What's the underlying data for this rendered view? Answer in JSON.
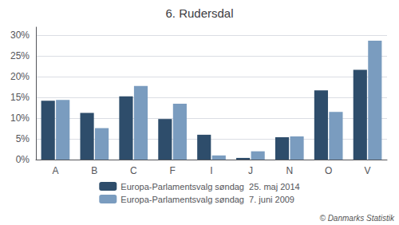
{
  "chart_data": {
    "type": "bar",
    "title": "6. Rudersdal",
    "categories": [
      "A",
      "B",
      "C",
      "F",
      "I",
      "J",
      "N",
      "O",
      "V"
    ],
    "series": [
      {
        "name": "Europa-Parlamentsvalg søndag  25. maj 2014",
        "color": "#2e4d6b",
        "values": [
          14.2,
          11.3,
          15.3,
          9.8,
          6.0,
          0.4,
          5.4,
          16.7,
          21.7
        ]
      },
      {
        "name": "Europa-Parlamentsvalg søndag  7. juni 2009",
        "color": "#7a9cbf",
        "values": [
          14.4,
          7.6,
          17.8,
          13.5,
          1.0,
          2.0,
          5.6,
          11.5,
          28.7
        ]
      }
    ],
    "ylim": [
      0,
      32
    ],
    "yticks": [
      {
        "value": 0,
        "label": "0%"
      },
      {
        "value": 5,
        "label": "5%"
      },
      {
        "value": 10,
        "label": "10%"
      },
      {
        "value": 15,
        "label": "15%"
      },
      {
        "value": 20,
        "label": "20%"
      },
      {
        "value": 25,
        "label": "25%"
      },
      {
        "value": 30,
        "label": "30%"
      }
    ],
    "grid": true,
    "legend": "bottom",
    "annotation": "© Danmarks Statistik"
  }
}
